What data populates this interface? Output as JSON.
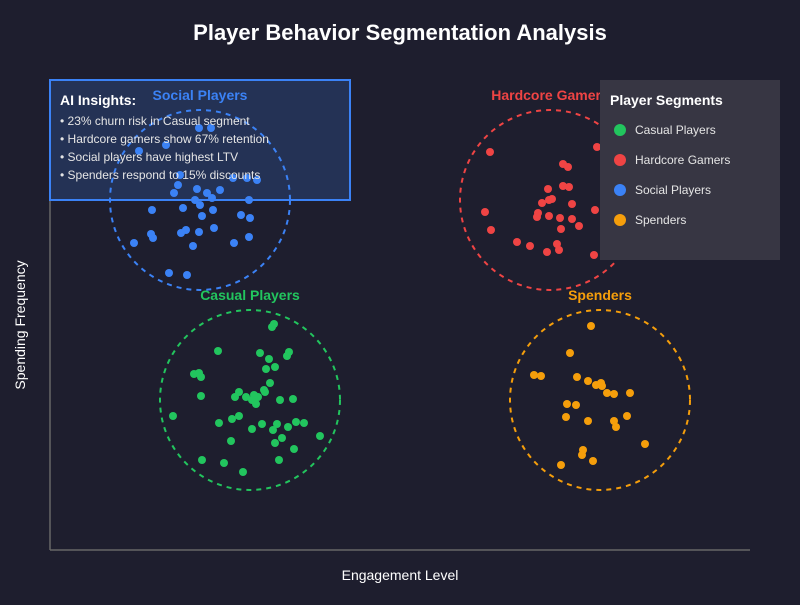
{
  "chart_data": {
    "type": "scatter",
    "title": "Player Behavior Segmentation Analysis",
    "xlabel": "Engagement Level",
    "ylabel": "Spending Frequency",
    "xlim": [
      0,
      700
    ],
    "ylim": [
      0,
      490
    ],
    "grid": false,
    "legend": {
      "title": "Player Segments",
      "placement": "top-right"
    },
    "series": [
      {
        "name": "Casual Players",
        "color": "#22c55e",
        "cluster_center": [
          200,
          150
        ],
        "cluster_radius": 90,
        "points": [
          [
            224,
            226
          ],
          [
            222,
            223
          ],
          [
            168,
            199
          ],
          [
            210,
            197
          ],
          [
            239,
            198
          ],
          [
            237,
            194
          ],
          [
            219,
            191
          ],
          [
            216,
            181
          ],
          [
            225,
            183
          ],
          [
            144,
            176
          ],
          [
            149,
            177
          ],
          [
            151,
            173
          ],
          [
            220,
            167
          ],
          [
            189,
            158
          ],
          [
            185,
            153
          ],
          [
            196,
            153
          ],
          [
            204,
            155
          ],
          [
            214,
            160
          ],
          [
            208,
            153
          ],
          [
            202,
            150
          ],
          [
            206,
            146
          ],
          [
            215,
            158
          ],
          [
            151,
            154
          ],
          [
            230,
            150
          ],
          [
            243,
            151
          ],
          [
            123,
            134
          ],
          [
            169,
            127
          ],
          [
            182,
            131
          ],
          [
            189,
            134
          ],
          [
            212,
            126
          ],
          [
            202,
            121
          ],
          [
            227,
            126
          ],
          [
            223,
            120
          ],
          [
            238,
            123
          ],
          [
            246,
            128
          ],
          [
            254,
            127
          ],
          [
            270,
            114
          ],
          [
            181,
            109
          ],
          [
            232,
            112
          ],
          [
            225,
            107
          ],
          [
            244,
            101
          ],
          [
            152,
            90
          ],
          [
            174,
            87
          ],
          [
            229,
            90
          ],
          [
            193,
            78
          ]
        ]
      },
      {
        "name": "Hardcore Gamers",
        "color": "#ef4444",
        "cluster_center": [
          500,
          350
        ],
        "cluster_radius": 90,
        "points": [
          [
            440,
            398
          ],
          [
            547,
            403
          ],
          [
            513,
            386
          ],
          [
            518,
            383
          ],
          [
            498,
            361
          ],
          [
            513,
            364
          ],
          [
            519,
            363
          ],
          [
            492,
            347
          ],
          [
            499,
            350
          ],
          [
            502,
            351
          ],
          [
            522,
            346
          ],
          [
            435,
            338
          ],
          [
            545,
            340
          ],
          [
            488,
            337
          ],
          [
            487,
            333
          ],
          [
            499,
            334
          ],
          [
            510,
            332
          ],
          [
            522,
            331
          ],
          [
            511,
            321
          ],
          [
            529,
            324
          ],
          [
            441,
            320
          ],
          [
            467,
            308
          ],
          [
            480,
            304
          ],
          [
            507,
            306
          ],
          [
            509,
            300
          ],
          [
            497,
            298
          ],
          [
            544,
            295
          ]
        ]
      },
      {
        "name": "Social Players",
        "color": "#3b82f6",
        "cluster_center": [
          150,
          350
        ],
        "cluster_radius": 90,
        "points": [
          [
            149,
            422
          ],
          [
            161,
            422
          ],
          [
            116,
            405
          ],
          [
            89,
            399
          ],
          [
            128,
            365
          ],
          [
            130,
            375
          ],
          [
            124,
            357
          ],
          [
            147,
            361
          ],
          [
            157,
            357
          ],
          [
            170,
            360
          ],
          [
            145,
            350
          ],
          [
            150,
            345
          ],
          [
            162,
            352
          ],
          [
            183,
            372
          ],
          [
            207,
            370
          ],
          [
            197,
            372
          ],
          [
            102,
            340
          ],
          [
            133,
            342
          ],
          [
            163,
            340
          ],
          [
            152,
            334
          ],
          [
            191,
            335
          ],
          [
            200,
            332
          ],
          [
            199,
            350
          ],
          [
            101,
            316
          ],
          [
            103,
            312
          ],
          [
            136,
            320
          ],
          [
            131,
            317
          ],
          [
            149,
            318
          ],
          [
            164,
            322
          ],
          [
            84,
            307
          ],
          [
            143,
            304
          ],
          [
            184,
            307
          ],
          [
            199,
            313
          ],
          [
            119,
            277
          ],
          [
            137,
            275
          ]
        ]
      },
      {
        "name": "Spenders",
        "color": "#f59e0b",
        "cluster_center": [
          550,
          150
        ],
        "cluster_radius": 90,
        "points": [
          [
            541,
            224
          ],
          [
            520,
            197
          ],
          [
            484,
            175
          ],
          [
            491,
            174
          ],
          [
            527,
            173
          ],
          [
            538,
            169
          ],
          [
            546,
            165
          ],
          [
            551,
            167
          ],
          [
            552,
            164
          ],
          [
            557,
            157
          ],
          [
            564,
            156
          ],
          [
            580,
            157
          ],
          [
            517,
            146
          ],
          [
            526,
            145
          ],
          [
            516,
            133
          ],
          [
            538,
            129
          ],
          [
            564,
            129
          ],
          [
            566,
            123
          ],
          [
            577,
            134
          ],
          [
            595,
            106
          ],
          [
            533,
            100
          ],
          [
            532,
            95
          ],
          [
            543,
            89
          ],
          [
            511,
            85
          ]
        ]
      }
    ],
    "annotations": {
      "title": "AI Insights:",
      "items": [
        "• 23% churn risk in Casual segment",
        "• Hardcore gamers show 67% retention",
        "• Social players have highest LTV",
        "• Spenders respond to 15% discounts"
      ]
    }
  }
}
